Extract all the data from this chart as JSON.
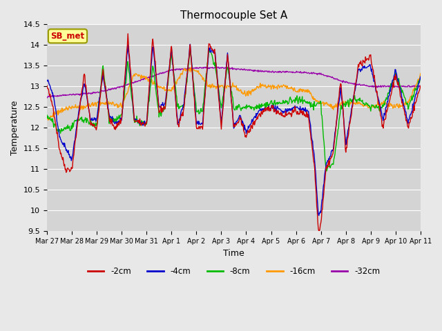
{
  "title": "Thermocouple Set A",
  "xlabel": "Time",
  "ylabel": "Temperature",
  "ylim": [
    9.5,
    14.5
  ],
  "fig_bg_color": "#e8e8e8",
  "plot_bg_color": "#d4d4d4",
  "legend_labels": [
    "-2cm",
    "-4cm",
    "-8cm",
    "-16cm",
    "-32cm"
  ],
  "legend_colors": [
    "#cc0000",
    "#0000cc",
    "#00bb00",
    "#ff9900",
    "#9900aa"
  ],
  "annotation_text": "SB_met",
  "annotation_bg": "#ffff99",
  "annotation_fg": "#cc0000",
  "annotation_edge": "#999900",
  "tick_dates": [
    "Mar 27",
    "Mar 28",
    "Mar 29",
    "Mar 30",
    "Mar 31",
    "Apr 1",
    "Apr 2",
    "Apr 3",
    "Apr 4",
    "Apr 5",
    "Apr 6",
    "Apr 7",
    "Apr 8",
    "Apr 9",
    "Apr 10",
    "Apr 11"
  ],
  "yticks": [
    9.5,
    10.0,
    10.5,
    11.0,
    11.5,
    12.0,
    12.5,
    13.0,
    13.5,
    14.0,
    14.5
  ]
}
